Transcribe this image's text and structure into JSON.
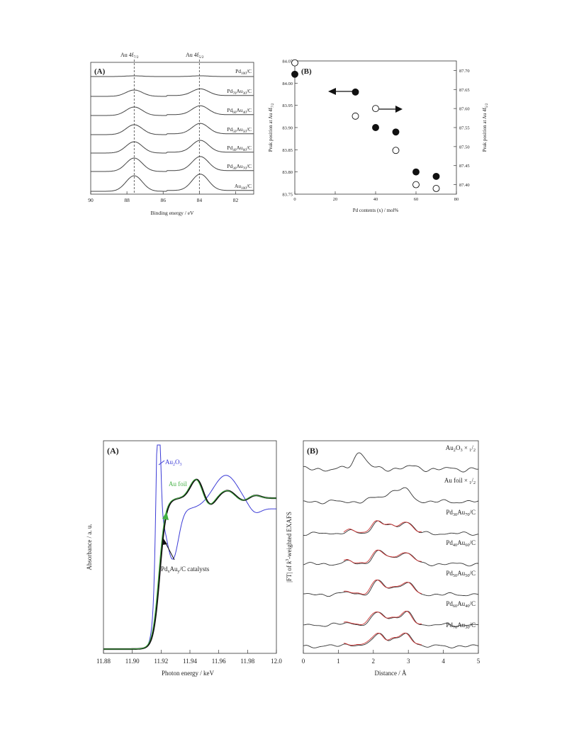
{
  "chart_data": [
    {
      "id": "xps_spectra",
      "type": "line",
      "panel_label": "(A)",
      "xlabel": "Binding energy / eV",
      "xlim": [
        90,
        81
      ],
      "xticks": [
        90,
        88,
        86,
        84,
        82
      ],
      "x_reversed": true,
      "markers": [
        {
          "label": "Au 4f7/2",
          "x": 87.6
        },
        {
          "label": "Au 4f5/2",
          "x": 84.0
        }
      ],
      "series": [
        {
          "name": "Pd100/C"
        },
        {
          "name": "Pd70Au30/C"
        },
        {
          "name": "Pd60Au40/C"
        },
        {
          "name": "Pd50Au50/C"
        },
        {
          "name": "Pd40Au60/C"
        },
        {
          "name": "Pd30Au70/C"
        },
        {
          "name": "Au100/C"
        }
      ]
    },
    {
      "id": "peak_position",
      "type": "scatter",
      "panel_label": "(B)",
      "xlabel": "Pd contents (x) / mol%",
      "ylabel_left": "Peak position at Au 4f7/2",
      "ylabel_right": "Peak position at Au 4f5/2",
      "xlim": [
        0,
        80
      ],
      "xticks": [
        0,
        20,
        40,
        60,
        80
      ],
      "ylim_left": [
        83.75,
        84.05
      ],
      "yticks_left": [
        "83.75",
        "83.80",
        "83.85",
        "83.90",
        "83.95",
        "84.00",
        "84.05"
      ],
      "ylim_right": [
        87.375,
        87.725
      ],
      "yticks_right": [
        "87.40",
        "87.45",
        "87.50",
        "87.55",
        "87.60",
        "87.65",
        "87.70"
      ],
      "series": [
        {
          "axis": "left",
          "marker": "filled",
          "x": [
            0,
            30,
            40,
            50,
            60,
            70
          ],
          "y": [
            84.02,
            83.98,
            83.9,
            83.89,
            83.8,
            83.79
          ]
        },
        {
          "axis": "right",
          "marker": "open",
          "x": [
            0,
            30,
            40,
            50,
            60,
            70
          ],
          "y": [
            87.72,
            87.58,
            87.6,
            87.49,
            87.4,
            87.39
          ]
        }
      ]
    },
    {
      "id": "xanes",
      "type": "line",
      "panel_label": "(A)",
      "xlabel": "Photon energy / keV",
      "ylabel": "Absorbance / a. u.",
      "xlim": [
        11.88,
        12.0
      ],
      "xticks": [
        "11.88",
        "11.90",
        "11.92",
        "11.94",
        "11.96",
        "11.98",
        "12.0"
      ],
      "series": [
        {
          "name": "Au2O3",
          "color": "#3b3bd6"
        },
        {
          "name": "Au foil",
          "color": "#44b044"
        },
        {
          "name": "PdxAuy/C catalysts",
          "color": "#111111"
        }
      ]
    },
    {
      "id": "exafs",
      "type": "line",
      "panel_label": "(B)",
      "xlabel": "Distance / Å",
      "ylabel": "|FT| of k3-weighted EXAFS",
      "xlim": [
        0,
        5
      ],
      "xticks": [
        0,
        1,
        2,
        3,
        4,
        5
      ],
      "series": [
        {
          "name": "Au2O3 × 1/2"
        },
        {
          "name": "Au foil × 1/2"
        },
        {
          "name": "Pd30Au70/C"
        },
        {
          "name": "Pd40Au60/C"
        },
        {
          "name": "Pd50Au50/C"
        },
        {
          "name": "Pd60Au40/C"
        },
        {
          "name": "Pd70Au30/C"
        }
      ],
      "fit_color": "#cc3333"
    }
  ]
}
